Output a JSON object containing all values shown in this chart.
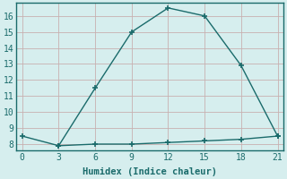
{
  "line1_x": [
    0,
    3,
    6,
    9,
    12,
    15,
    18,
    21
  ],
  "line1_y": [
    8.5,
    7.9,
    11.5,
    15.0,
    16.5,
    16.0,
    12.9,
    8.5
  ],
  "line2_x": [
    3,
    6,
    9,
    12,
    15,
    18,
    21
  ],
  "line2_y": [
    7.9,
    8.0,
    8.0,
    8.1,
    8.2,
    8.3,
    8.5
  ],
  "line_color": "#1a6b6b",
  "marker_color": "#1a6b6b",
  "bg_color": "#d6eeee",
  "grid_color": "#c8b0b0",
  "xlabel": "Humidex (Indice chaleur)",
  "xlim": [
    -0.5,
    21.5
  ],
  "ylim": [
    7.6,
    16.8
  ],
  "xticks": [
    0,
    3,
    6,
    9,
    12,
    15,
    18,
    21
  ],
  "yticks": [
    8,
    9,
    10,
    11,
    12,
    13,
    14,
    15,
    16
  ],
  "xlabel_fontsize": 7.5,
  "tick_fontsize": 7
}
